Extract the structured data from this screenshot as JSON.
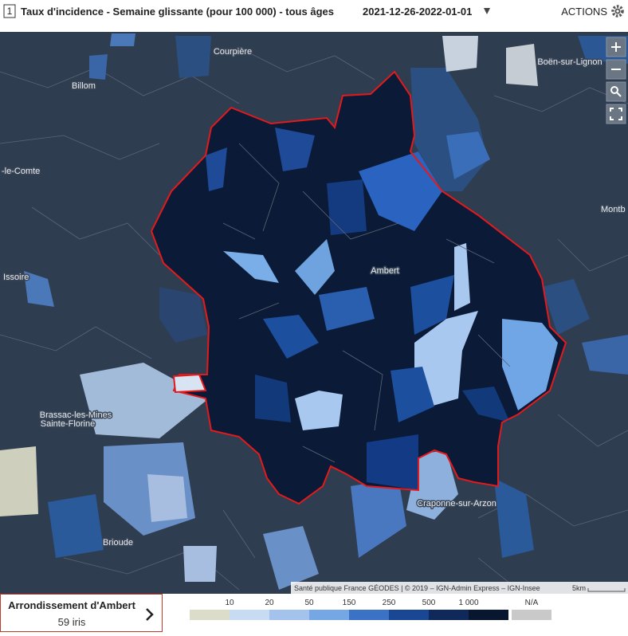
{
  "header": {
    "number": "1",
    "title": "Taux d'incidence - Semaine glissante (pour 100 000) - tous âges",
    "date": "2021-12-26-2022-01-01",
    "actions": "ACTIONS"
  },
  "map": {
    "places": [
      "Courpière",
      "Billom",
      "Boën-sur-Lignon",
      "-le-Comte",
      "Montb",
      "Issoire",
      "Ambert",
      "Brassac-les-Mines",
      "Sainte-Florine",
      "Brioude",
      "Craponne-sur-Arzon"
    ],
    "attribution": "Santé publique France GÉODES | © 2019 – IGN-Admin Express – IGN-Insee",
    "scale": "5km"
  },
  "legend": {
    "labels": [
      "10",
      "20",
      "50",
      "150",
      "250",
      "500",
      "1 000"
    ],
    "colors": [
      "#dcdccb",
      "#c7dbf2",
      "#a3c3ec",
      "#74a7e4",
      "#3b72c6",
      "#1a4794",
      "#0f2a5a",
      "#091630"
    ],
    "na_label": "N/A",
    "na_color": "#c9c9c9"
  },
  "panel": {
    "title": "Arrondissement d'Ambert",
    "subtitle": "59 iris"
  }
}
